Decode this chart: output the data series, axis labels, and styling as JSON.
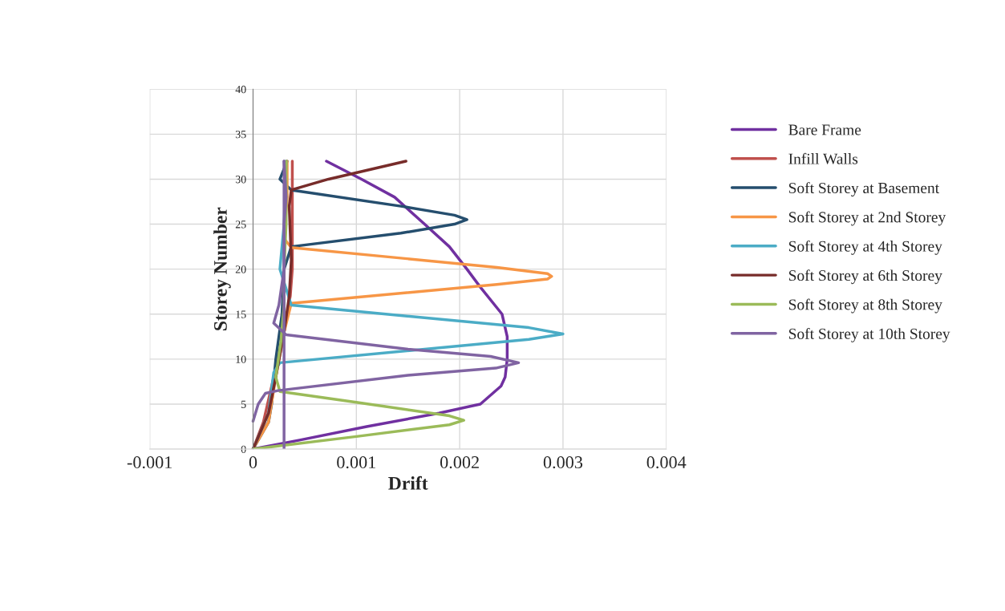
{
  "chart_data": {
    "type": "line",
    "xlabel": "Drift",
    "ylabel": "Storey Number",
    "xlim": [
      -0.001,
      0.004
    ],
    "xticks": [
      -0.001,
      0,
      0.001,
      0.002,
      0.003,
      0.004
    ],
    "ylim": [
      0,
      40
    ],
    "yticks": [
      0,
      5,
      10,
      15,
      20,
      25,
      30,
      35,
      40
    ],
    "grid": true,
    "legend": "right",
    "series": [
      {
        "name": "Bare Frame",
        "color": "#7030a0",
        "x": [
          0,
          0.00045,
          0.0011,
          0.0018,
          0.0022,
          0.0023,
          0.0024,
          0.00244,
          0.00246,
          0.00246,
          0.00241,
          0.0022,
          0.00207,
          0.0019,
          0.00166,
          0.00137,
          0.00105,
          0.00071
        ],
        "values": [
          0,
          1,
          2.5,
          4,
          5,
          6,
          7,
          8,
          10,
          12.5,
          15,
          18,
          20,
          22.5,
          25,
          28,
          30,
          32
        ]
      },
      {
        "name": "Infill Walls",
        "color": "#c0504d",
        "x": [
          0,
          0.0001,
          0.0002,
          0.0003,
          0.00036,
          0.00038,
          0.00038
        ],
        "values": [
          0,
          3,
          8,
          13,
          17,
          20,
          32
        ]
      },
      {
        "name": "Soft Storey at Basement",
        "color": "#254e6e",
        "x": [
          0,
          0.00015,
          0.00018,
          0.00022,
          0.00028,
          0.0003,
          0.00037,
          0.00143,
          0.00195,
          0.00207,
          0.00195,
          0.00143,
          0.00037,
          0.00026,
          0.00033
        ],
        "values": [
          0,
          3,
          5,
          10,
          15,
          20,
          22.5,
          24,
          25,
          25.5,
          26,
          27,
          28.8,
          30,
          32
        ]
      },
      {
        "name": "Soft Storey at 2nd Storey",
        "color": "#f79646",
        "x": [
          0,
          0.00015,
          0.00022,
          0.0003,
          0.00037,
          0.00236,
          0.00285,
          0.00289,
          0.00285,
          0.00236,
          0.00037,
          0.0003,
          0.00033,
          0.00033
        ],
        "values": [
          0,
          3,
          8,
          13,
          16.2,
          18.3,
          18.9,
          19.2,
          19.5,
          20.2,
          22.4,
          23.4,
          28,
          32
        ]
      },
      {
        "name": "Soft Storey at 4th Storey",
        "color": "#4bacc6",
        "x": [
          0,
          0.00015,
          0.0002,
          0.00026,
          0.00267,
          0.003,
          0.00267,
          0.00037,
          0.00026,
          0.0003,
          0.00032
        ],
        "values": [
          0,
          4,
          8.5,
          9.6,
          12.2,
          12.8,
          13.5,
          16,
          20,
          25,
          32
        ]
      },
      {
        "name": "Soft Storey at 6th Storey",
        "color": "#772c2a",
        "x": [
          0,
          0.00015,
          0.00022,
          0.0003,
          0.00035,
          0.00037,
          0.00036,
          0.00035,
          0.00037,
          0.00073,
          0.00148
        ],
        "values": [
          0,
          4,
          8,
          13,
          17,
          21,
          24,
          27,
          28.8,
          30,
          32
        ]
      },
      {
        "name": "Soft Storey at 8th Storey",
        "color": "#9bbb59",
        "x": [
          0,
          0.001,
          0.0019,
          0.00204,
          0.0019,
          0.001,
          0.00026,
          0.00022,
          0.00027,
          0.0003,
          0.0003,
          0.00032,
          0.00032
        ],
        "values": [
          0,
          1.4,
          2.7,
          3.2,
          3.7,
          5.2,
          6.4,
          8,
          12,
          16,
          20,
          25,
          32
        ]
      },
      {
        "name": "Soft Storey at 10th Storey",
        "color": "#8064a2",
        "x": [
          0,
          5e-05,
          0.00012,
          0.00024,
          0.0015,
          0.00235,
          0.00257,
          0.0023,
          0.0015,
          0.00032,
          0.0002,
          0.00025,
          0.0003,
          0.0003,
          0.00032,
          0.0003
        ],
        "values": [
          3.1,
          5,
          6.2,
          6.5,
          8.2,
          9,
          9.6,
          10.3,
          11.1,
          12.7,
          14,
          16,
          20,
          25,
          28,
          32
        ]
      },
      {
        "color": "#8064a2",
        "x": [
          0.0003,
          0.0003
        ],
        "values": [
          0,
          32
        ]
      }
    ]
  }
}
